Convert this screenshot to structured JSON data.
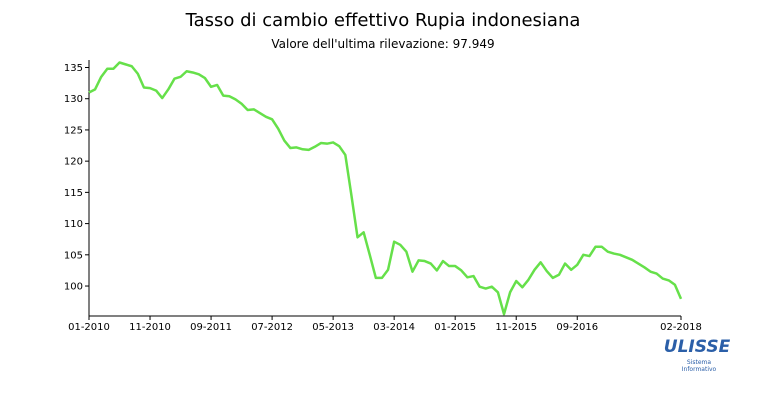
{
  "chart_data": {
    "type": "line",
    "title": "Tasso di cambio effettivo Rupia indonesiana",
    "subtitle": "Valore dell'ultima rilevazione: 97.949",
    "categories": [
      "01-2010",
      null,
      null,
      null,
      null,
      null,
      null,
      null,
      null,
      null,
      "11-2010",
      null,
      null,
      null,
      null,
      null,
      null,
      null,
      null,
      null,
      "09-2011",
      null,
      null,
      null,
      null,
      null,
      null,
      null,
      null,
      null,
      "07-2012",
      null,
      null,
      null,
      null,
      null,
      null,
      null,
      null,
      null,
      "05-2013",
      null,
      null,
      null,
      null,
      null,
      null,
      null,
      null,
      null,
      "03-2014",
      null,
      null,
      null,
      null,
      null,
      null,
      null,
      null,
      null,
      "01-2015",
      null,
      null,
      null,
      null,
      null,
      null,
      null,
      null,
      null,
      "11-2015",
      null,
      null,
      null,
      null,
      null,
      null,
      null,
      null,
      null,
      "09-2016",
      null,
      null,
      null,
      null,
      null,
      null,
      null,
      null,
      null,
      null,
      null,
      null,
      null,
      null,
      null,
      null,
      "02-2018"
    ],
    "series": [
      {
        "name": "Rupia indonesiana",
        "color": "#66e04a",
        "values": [
          131.0,
          131.5,
          133.5,
          134.8,
          134.8,
          135.8,
          135.5,
          135.2,
          134.0,
          131.8,
          131.7,
          131.3,
          130.1,
          131.5,
          133.2,
          133.5,
          134.4,
          134.2,
          133.9,
          133.3,
          131.9,
          132.2,
          130.5,
          130.4,
          129.9,
          129.2,
          128.2,
          128.3,
          127.7,
          127.1,
          126.7,
          125.2,
          123.3,
          122.1,
          122.2,
          121.9,
          121.8,
          122.3,
          122.9,
          122.8,
          123.0,
          122.4,
          121.0,
          114.5,
          107.8,
          108.6,
          105.0,
          101.3,
          101.3,
          102.6,
          107.1,
          106.6,
          105.5,
          102.3,
          104.1,
          104.0,
          103.6,
          102.5,
          104.0,
          103.2,
          103.2,
          102.5,
          101.4,
          101.6,
          99.9,
          99.6,
          99.9,
          99.0,
          95.5,
          99.0,
          100.8,
          99.8,
          101.0,
          102.6,
          103.8,
          102.4,
          101.3,
          101.8,
          103.6,
          102.6,
          103.4,
          105.0,
          104.8,
          106.3,
          106.3,
          105.5,
          105.2,
          105.0,
          104.6,
          104.2,
          103.6,
          103.0,
          102.3,
          102.0,
          101.2,
          100.9,
          100.2,
          97.949
        ]
      }
    ],
    "ylim": [
      95.2,
      136.2
    ],
    "yticks": [
      100,
      105,
      110,
      115,
      120,
      125,
      130,
      135
    ],
    "logo": {
      "name": "ULISSE",
      "line1": "Sistema",
      "line2": "Informativo"
    }
  }
}
